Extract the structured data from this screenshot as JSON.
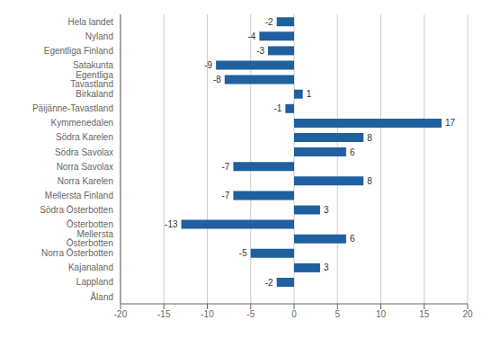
{
  "chart_data": {
    "type": "bar",
    "orientation": "horizontal",
    "categories": [
      "Hela landet",
      "Nyland",
      "Egentliga Finland",
      "Satakunta",
      "Egentliga Tavastland",
      "Birkaland",
      "Päijänne-Tavastland",
      "Kymmenedalen",
      "Södra Karelen",
      "Södra Savolax",
      "Norra Savolax",
      "Norra Karelen",
      "Mellersta Finland",
      "Södra Österbotten",
      "Österbotten",
      "Mellersta Österbotten",
      "Norra Österbotten",
      "Kajanaland",
      "Lappland",
      "Åland"
    ],
    "values": [
      -2,
      -4,
      -3,
      -9,
      -8,
      1,
      -1,
      17,
      8,
      6,
      -7,
      8,
      -7,
      3,
      -13,
      6,
      -5,
      3,
      -2,
      0
    ],
    "color": "#2060A0",
    "xlim": [
      -20,
      20
    ],
    "xticks": [
      -20,
      -15,
      -10,
      -5,
      0,
      5,
      10,
      15,
      20
    ],
    "grid": true,
    "data_labels": true
  }
}
